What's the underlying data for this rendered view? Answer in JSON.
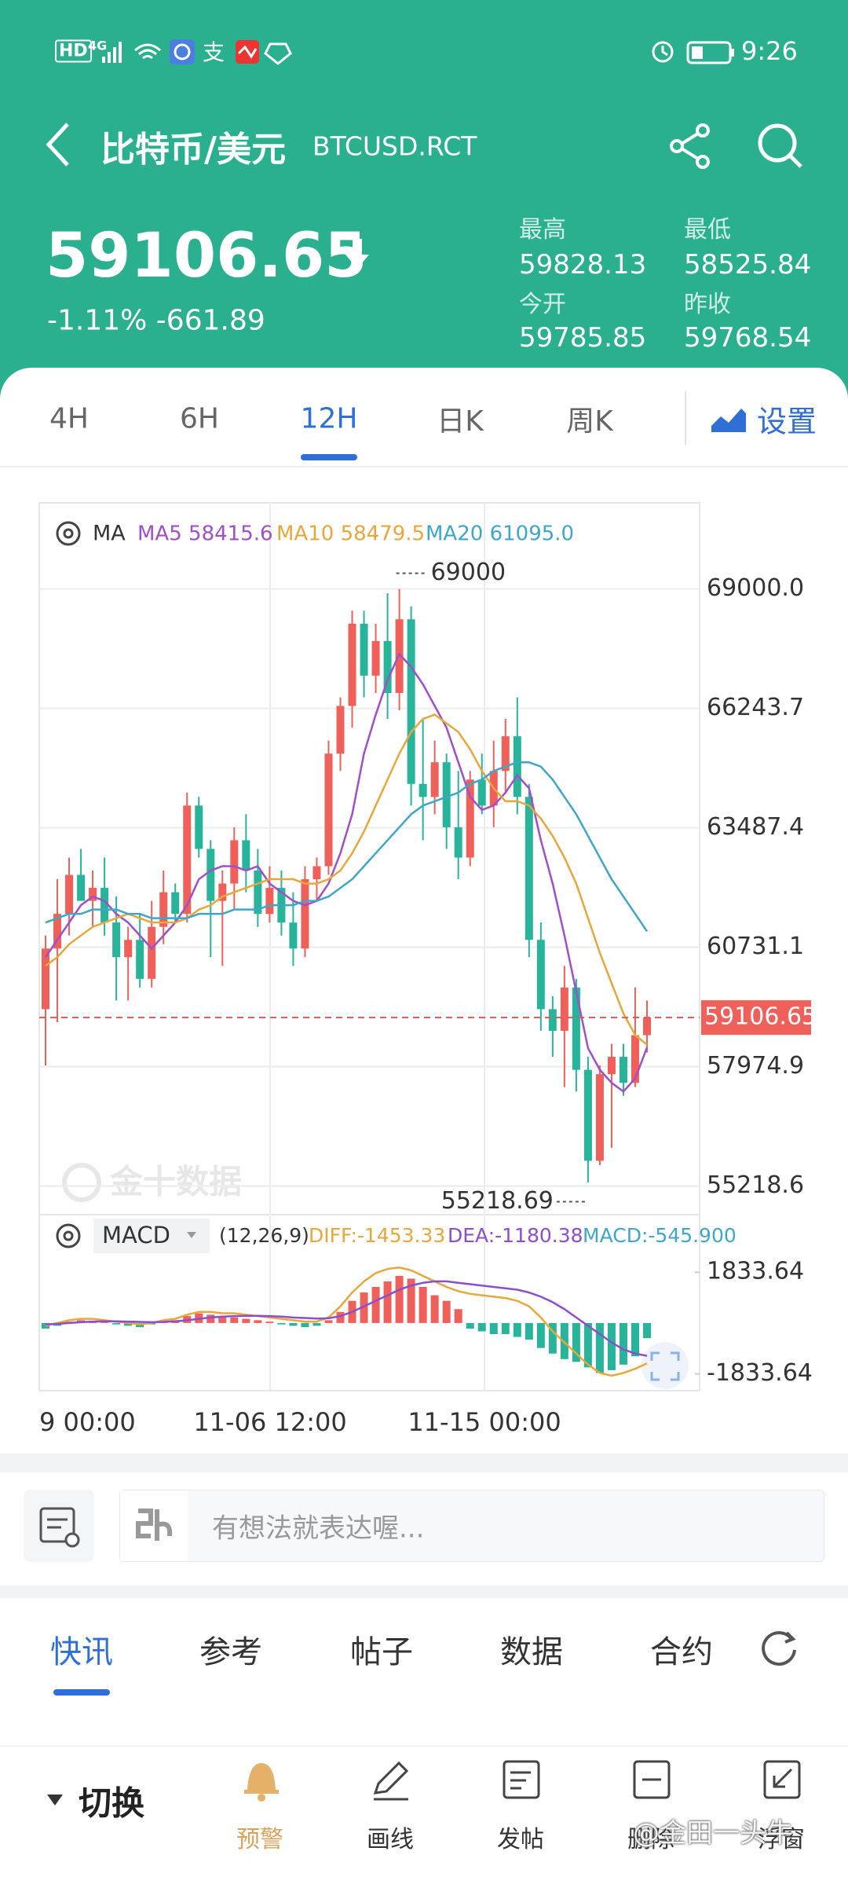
{
  "status_bar": {
    "network": "HD",
    "signal": "4G",
    "time": "9:26"
  },
  "header": {
    "title": "比特币/美元",
    "symbol": "BTCUSD.RCT",
    "price": "59106.65",
    "change": "-1.11% -661.89",
    "stats": [
      {
        "label": "最高",
        "value": "59828.13"
      },
      {
        "label": "最低",
        "value": "58525.84"
      },
      {
        "label": "今开",
        "value": "59785.85"
      },
      {
        "label": "昨收",
        "value": "59768.54"
      }
    ]
  },
  "period_tabs": [
    "4H",
    "6H",
    "12H",
    "日K",
    "周K"
  ],
  "settings": "设置",
  "chart_data": {
    "type": "candlestick",
    "legend_title": "MA",
    "legend": [
      {
        "text": "MA5 58415.6",
        "color": "#a04fc8"
      },
      {
        "text": "MA10 58479.5",
        "color": "#e8a73a"
      },
      {
        "text": "MA20 61095.0",
        "color": "#3ea7c9"
      }
    ],
    "ylim": [
      54556,
      70989
    ],
    "yticks": [
      {
        "value": 69000,
        "label": "69000.0"
      },
      {
        "value": 66243.7,
        "label": "66243.7"
      },
      {
        "value": 63487.4,
        "label": "63487.4"
      },
      {
        "value": 60731.1,
        "label": "60731.1"
      },
      {
        "value": 57974.9,
        "label": "57974.9"
      },
      {
        "value": 55218.6,
        "label": "55218.6"
      }
    ],
    "up_color": "#f0605a",
    "down_color": "#27b49a",
    "candles": [
      {
        "open": 59300,
        "high": 61000,
        "low": 58000,
        "close": 60700
      },
      {
        "open": 60700,
        "high": 62300,
        "low": 59000,
        "close": 61500
      },
      {
        "open": 61500,
        "high": 62800,
        "low": 61000,
        "close": 62400
      },
      {
        "open": 62400,
        "high": 63000,
        "low": 61800,
        "close": 61800
      },
      {
        "open": 61800,
        "high": 62500,
        "low": 61200,
        "close": 62100
      },
      {
        "open": 62100,
        "high": 62800,
        "low": 61000,
        "close": 61300
      },
      {
        "open": 61300,
        "high": 61900,
        "low": 59500,
        "close": 60500
      },
      {
        "open": 60500,
        "high": 61200,
        "low": 59500,
        "close": 60900
      },
      {
        "open": 60900,
        "high": 61500,
        "low": 59800,
        "close": 60000
      },
      {
        "open": 60000,
        "high": 61800,
        "low": 59800,
        "close": 61200
      },
      {
        "open": 61200,
        "high": 62500,
        "low": 60800,
        "close": 62000
      },
      {
        "open": 62000,
        "high": 62200,
        "low": 61300,
        "close": 61500
      },
      {
        "open": 61500,
        "high": 64300,
        "low": 61300,
        "close": 64000
      },
      {
        "open": 64000,
        "high": 64200,
        "low": 62800,
        "close": 63000
      },
      {
        "open": 63000,
        "high": 63200,
        "low": 60500,
        "close": 61800
      },
      {
        "open": 61800,
        "high": 62500,
        "low": 60300,
        "close": 62200
      },
      {
        "open": 62200,
        "high": 63500,
        "low": 61600,
        "close": 63200
      },
      {
        "open": 63200,
        "high": 63800,
        "low": 62000,
        "close": 62500
      },
      {
        "open": 62500,
        "high": 63000,
        "low": 61200,
        "close": 61500
      },
      {
        "open": 61500,
        "high": 62600,
        "low": 61300,
        "close": 62100
      },
      {
        "open": 62100,
        "high": 62500,
        "low": 61000,
        "close": 61300
      },
      {
        "open": 61300,
        "high": 62000,
        "low": 60300,
        "close": 60700
      },
      {
        "open": 60700,
        "high": 62600,
        "low": 60500,
        "close": 62300
      },
      {
        "open": 62300,
        "high": 62800,
        "low": 61800,
        "close": 62600
      },
      {
        "open": 62600,
        "high": 65500,
        "low": 62400,
        "close": 65200
      },
      {
        "open": 65200,
        "high": 66500,
        "low": 64800,
        "close": 66300
      },
      {
        "open": 66300,
        "high": 68500,
        "low": 65800,
        "close": 68200
      },
      {
        "open": 68200,
        "high": 68500,
        "low": 66500,
        "close": 67000
      },
      {
        "open": 67000,
        "high": 68200,
        "low": 66600,
        "close": 67800
      },
      {
        "open": 67800,
        "high": 68900,
        "low": 66000,
        "close": 66600
      },
      {
        "open": 66600,
        "high": 69000,
        "low": 66200,
        "close": 68300
      },
      {
        "open": 68300,
        "high": 68600,
        "low": 64000,
        "close": 64500
      },
      {
        "open": 64500,
        "high": 66000,
        "low": 63200,
        "close": 64200
      },
      {
        "open": 64200,
        "high": 65500,
        "low": 63800,
        "close": 65000
      },
      {
        "open": 65000,
        "high": 65200,
        "low": 63000,
        "close": 63500
      },
      {
        "open": 63500,
        "high": 64800,
        "low": 62300,
        "close": 62800
      },
      {
        "open": 62800,
        "high": 64800,
        "low": 62600,
        "close": 64600
      },
      {
        "open": 64600,
        "high": 65200,
        "low": 63800,
        "close": 64000
      },
      {
        "open": 64000,
        "high": 65500,
        "low": 63500,
        "close": 64800
      },
      {
        "open": 64800,
        "high": 66000,
        "low": 64300,
        "close": 65600
      },
      {
        "open": 65600,
        "high": 66500,
        "low": 63800,
        "close": 64200
      },
      {
        "open": 64200,
        "high": 64500,
        "low": 60500,
        "close": 60900
      },
      {
        "open": 60900,
        "high": 61300,
        "low": 58800,
        "close": 59300
      },
      {
        "open": 59300,
        "high": 59600,
        "low": 58200,
        "close": 58800
      },
      {
        "open": 58800,
        "high": 60300,
        "low": 57500,
        "close": 59800
      },
      {
        "open": 59800,
        "high": 60000,
        "low": 57400,
        "close": 57900
      },
      {
        "open": 57900,
        "high": 58200,
        "low": 55300,
        "close": 55800
      },
      {
        "open": 55800,
        "high": 58000,
        "low": 55700,
        "close": 57800
      },
      {
        "open": 57800,
        "high": 58500,
        "low": 56100,
        "close": 58200
      },
      {
        "open": 58200,
        "high": 58500,
        "low": 57300,
        "close": 57600
      },
      {
        "open": 57600,
        "high": 59800,
        "low": 57500,
        "close": 58700
      },
      {
        "open": 58700,
        "high": 59500,
        "low": 58300,
        "close": 59106.65
      }
    ],
    "series": [
      {
        "color": "#a04fc8",
        "values": [
          60500,
          60900,
          61300,
          61700,
          61900,
          61800,
          61500,
          61300,
          61000,
          60700,
          61000,
          61300,
          61700,
          62300,
          62500,
          62600,
          62600,
          62500,
          62600,
          62200,
          62000,
          61800,
          61700,
          61800,
          62200,
          62900,
          63800,
          65200,
          66100,
          66900,
          67500,
          67200,
          66800,
          66300,
          65800,
          65000,
          64200,
          63900,
          64000,
          64300,
          64700,
          64400,
          63200,
          62200,
          61000,
          59700,
          58400,
          57900,
          57600,
          57400,
          57700,
          58415.6
        ]
      },
      {
        "color": "#e8a73a",
        "values": [
          60300,
          60500,
          60800,
          61000,
          61200,
          61300,
          61400,
          61500,
          61400,
          61300,
          61300,
          61300,
          61400,
          61600,
          61700,
          61900,
          62000,
          62100,
          62200,
          62300,
          62300,
          62300,
          62200,
          62200,
          62300,
          62500,
          62900,
          63400,
          64000,
          64600,
          65200,
          65700,
          66000,
          66100,
          65900,
          65700,
          65300,
          64800,
          64400,
          64100,
          64100,
          64000,
          63700,
          63300,
          62800,
          62200,
          61400,
          60600,
          59900,
          59200,
          58700,
          58479.5
        ]
      },
      {
        "color": "#3ea7c9",
        "values": [
          61300,
          61400,
          61500,
          61500,
          61600,
          61600,
          61600,
          61500,
          61500,
          61400,
          61400,
          61400,
          61400,
          61500,
          61500,
          61500,
          61600,
          61600,
          61600,
          61700,
          61700,
          61700,
          61800,
          61800,
          61900,
          62100,
          62300,
          62600,
          62900,
          63200,
          63500,
          63800,
          64000,
          64100,
          64200,
          64300,
          64500,
          64600,
          64800,
          64900,
          65000,
          65000,
          64900,
          64600,
          64200,
          63800,
          63300,
          62800,
          62300,
          61900,
          61500,
          61095
        ]
      }
    ],
    "last_price": 59106.65,
    "high_mark": 69000,
    "low_mark": 55218.69,
    "x_labels": [
      "9 00:00",
      "11-06 12:00",
      "11-15 00:00"
    ],
    "macd": {
      "title": "MACD",
      "params": "(12,26,9)",
      "legend": [
        {
          "text": "DIFF:-1453.33",
          "color": "#e8a73a"
        },
        {
          "text": "DEA:-1180.38",
          "color": "#8a4fcf"
        },
        {
          "text": "MACD:-545.900",
          "color": "#3ea7c9"
        }
      ],
      "ylim": [
        -2438,
        3905
      ],
      "yticks": [
        1833.64,
        -1833.64
      ],
      "histogram": [
        -200,
        -100,
        50,
        100,
        80,
        50,
        -50,
        -100,
        -150,
        -50,
        50,
        100,
        250,
        350,
        300,
        200,
        200,
        150,
        100,
        50,
        -50,
        -100,
        -150,
        -100,
        100,
        400,
        800,
        1100,
        1300,
        1500,
        1700,
        1600,
        1300,
        1000,
        800,
        500,
        -200,
        -300,
        -400,
        -400,
        -500,
        -600,
        -900,
        -1100,
        -1300,
        -1400,
        -1600,
        -1800,
        -1700,
        -1500,
        -1200,
        -545.9
      ],
      "series": [
        {
          "color": "#e8a73a",
          "values": [
            -100,
            0,
            100,
            150,
            150,
            100,
            50,
            0,
            -50,
            0,
            100,
            150,
            300,
            400,
            400,
            350,
            350,
            300,
            250,
            200,
            150,
            100,
            50,
            50,
            200,
            600,
            1100,
            1500,
            1800,
            1950,
            2000,
            1900,
            1700,
            1500,
            1300,
            1150,
            1050,
            1000,
            950,
            900,
            800,
            600,
            200,
            -300,
            -700,
            -1100,
            -1500,
            -1800,
            -1900,
            -1800,
            -1650,
            -1453.33
          ]
        },
        {
          "color": "#8a4fcf",
          "values": [
            -50,
            -30,
            0,
            30,
            50,
            60,
            60,
            50,
            40,
            30,
            40,
            60,
            100,
            150,
            200,
            230,
            250,
            260,
            260,
            250,
            230,
            200,
            180,
            160,
            170,
            250,
            400,
            600,
            800,
            1000,
            1200,
            1350,
            1450,
            1500,
            1500,
            1450,
            1400,
            1350,
            1300,
            1250,
            1200,
            1100,
            950,
            750,
            500,
            200,
            -100,
            -400,
            -700,
            -950,
            -1100,
            -1180.38
          ]
        }
      ]
    }
  },
  "chart_watermark": "金十数据",
  "comment_placeholder": "有想法就表达喔...",
  "news_tabs": [
    "快讯",
    "参考",
    "帖子",
    "数据",
    "合约"
  ],
  "toolbar": [
    "切换",
    "预警",
    "画线",
    "发帖",
    "删除",
    "浮窗"
  ],
  "watermark": "@金田一头牛"
}
